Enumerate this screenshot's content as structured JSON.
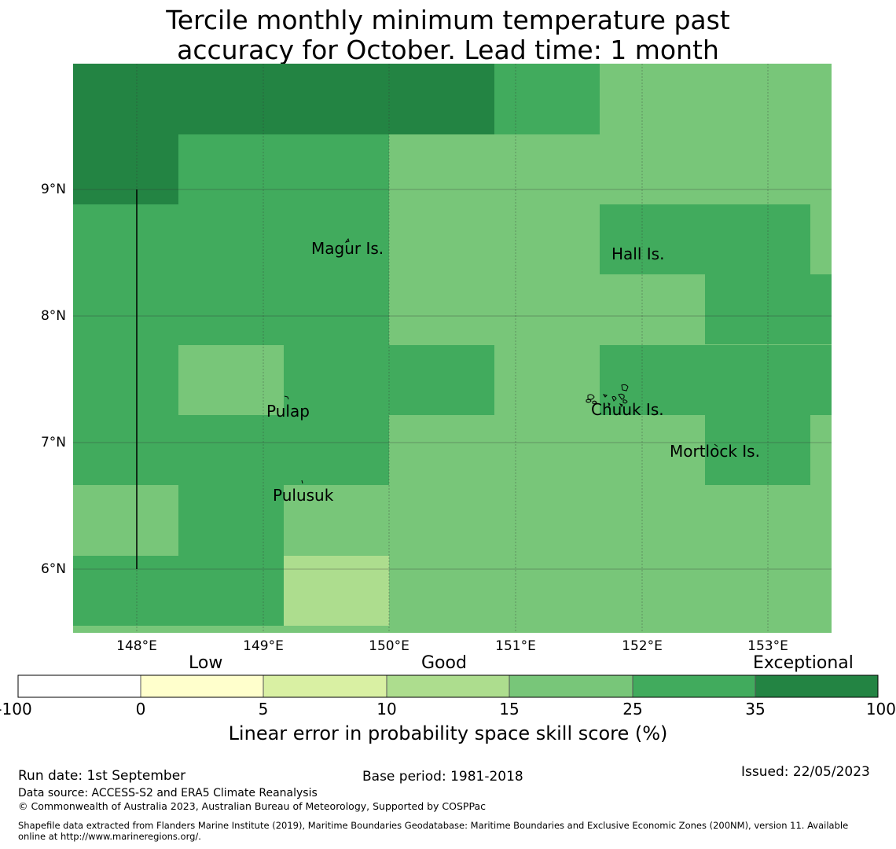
{
  "title_line1": "Tercile monthly minimum temperature past",
  "title_line2": "accuracy for October. Lead time: 1 month",
  "map": {
    "lon_range": [
      147.5,
      153.5
    ],
    "lat_range": [
      5.5,
      10.0
    ],
    "xticks": [
      "148°E",
      "149°E",
      "150°E",
      "151°E",
      "152°E",
      "153°E"
    ],
    "yticks": [
      "9°N",
      "8°N",
      "7°N",
      "6°N"
    ],
    "places": [
      {
        "name": "Magur Is."
      },
      {
        "name": "Hall Is."
      },
      {
        "name": "Pulap"
      },
      {
        "name": "Chuuk Is."
      },
      {
        "name": "Mortlock Is."
      },
      {
        "name": "Pulusuk"
      }
    ]
  },
  "colorbar": {
    "categories": [
      "Low",
      "Good",
      "Exceptional"
    ],
    "ticks": [
      "-100",
      "0",
      "5",
      "10",
      "15",
      "25",
      "35",
      "100"
    ],
    "colors": [
      "#ffffff",
      "#ffffcc",
      "#d9f0a3",
      "#addd8e",
      "#78c679",
      "#41ab5d",
      "#238443"
    ],
    "label": "Linear error in probability space skill score (%)"
  },
  "footer": {
    "run_date": "Run date: 1st September",
    "base_period": "Base period: 1981-2018",
    "issued": "Issued: 22/05/2023",
    "data_source": "Data source: ACCESS-S2 and ERA5 Climate Reanalysis",
    "copyright": "© Commonwealth of Australia 2023, Australian Bureau of Meteorology, Supported by COSPPac",
    "shapefile_line1": "Shapefile data extracted from Flanders Marine Institute (2019), Maritime Boundaries Geodatabase: Maritime Boundaries and Exclusive Economic Zones (200NM), version 11. Available",
    "shapefile_line2": "online at http://www.marineregions.org/."
  }
}
